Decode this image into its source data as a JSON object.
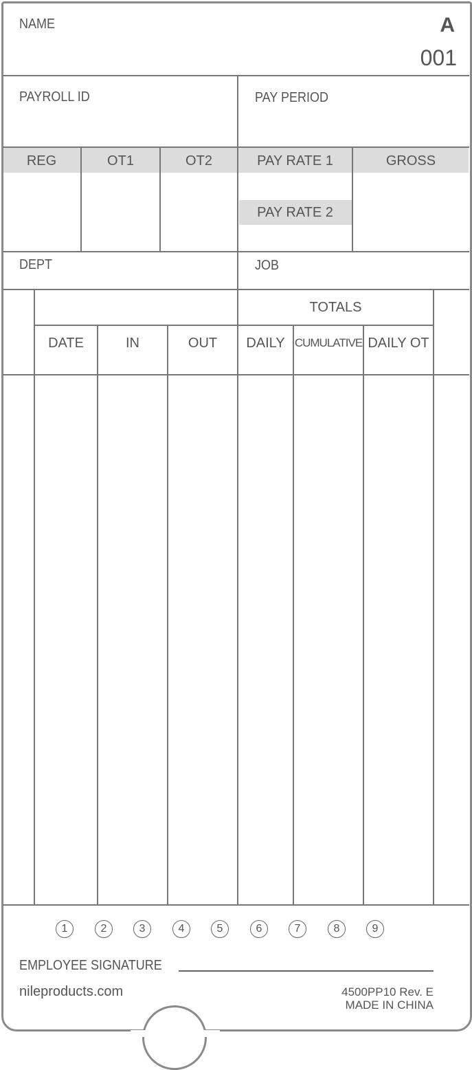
{
  "header": {
    "name_label": "NAME",
    "card_letter": "A",
    "card_number": "001"
  },
  "fields": {
    "payroll_id": "PAYROLL ID",
    "pay_period": "PAY PERIOD",
    "dept": "DEPT",
    "job": "JOB"
  },
  "summary": {
    "reg": "REG",
    "ot1": "OT1",
    "ot2": "OT2",
    "pay_rate_1": "PAY RATE 1",
    "pay_rate_2": "PAY RATE 2",
    "gross": "GROSS"
  },
  "table": {
    "totals": "TOTALS",
    "columns": [
      "DATE",
      "IN",
      "OUT",
      "DAILY",
      "CUMULATIVE",
      "DAILY OT"
    ]
  },
  "day_markers": [
    "1",
    "2",
    "3",
    "4",
    "5",
    "6",
    "7",
    "8",
    "9"
  ],
  "footer": {
    "signature_label": "EMPLOYEE SIGNATURE",
    "website": "nileproducts.com",
    "form_code": "4500PP10 Rev. E",
    "origin": "MADE IN CHINA"
  }
}
